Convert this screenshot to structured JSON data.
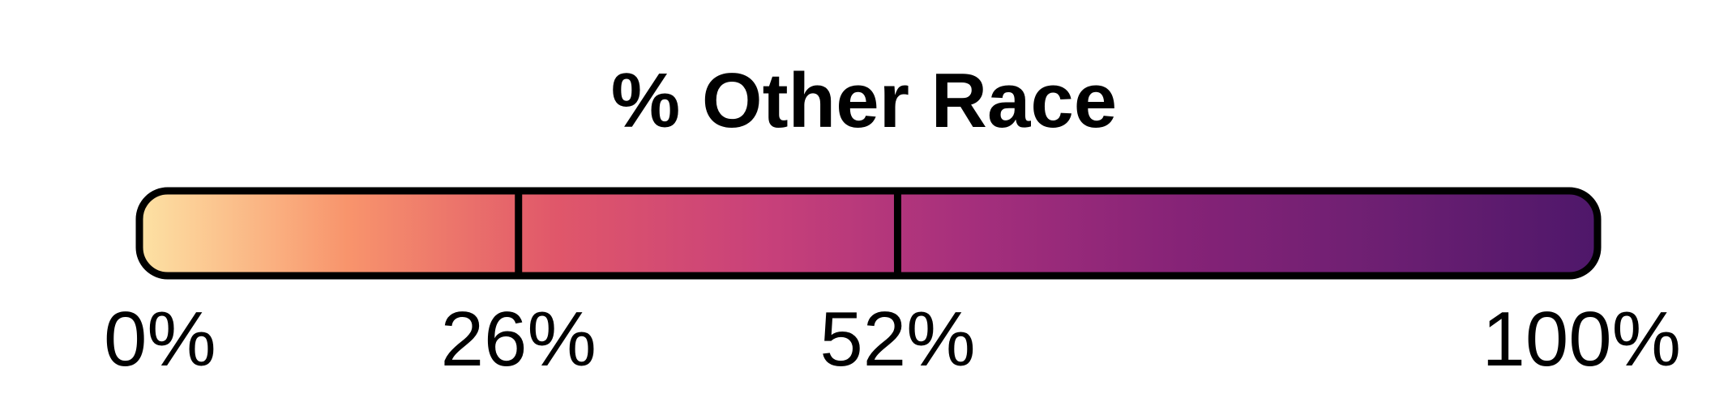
{
  "chart_data": {
    "type": "heatmap",
    "title": "% Other Race",
    "colormap": "magma",
    "range": [
      0,
      100
    ],
    "breaks": [
      0,
      26,
      52,
      100
    ],
    "tick_labels": [
      "0%",
      "26%",
      "52%",
      "100%"
    ],
    "gradient_colors": [
      "#fde2a4",
      "#f8946c",
      "#e0576a",
      "#c8417a",
      "#a52f7c",
      "#862377",
      "#6c1f72",
      "#4e176a"
    ],
    "outline_color": "#000000"
  }
}
